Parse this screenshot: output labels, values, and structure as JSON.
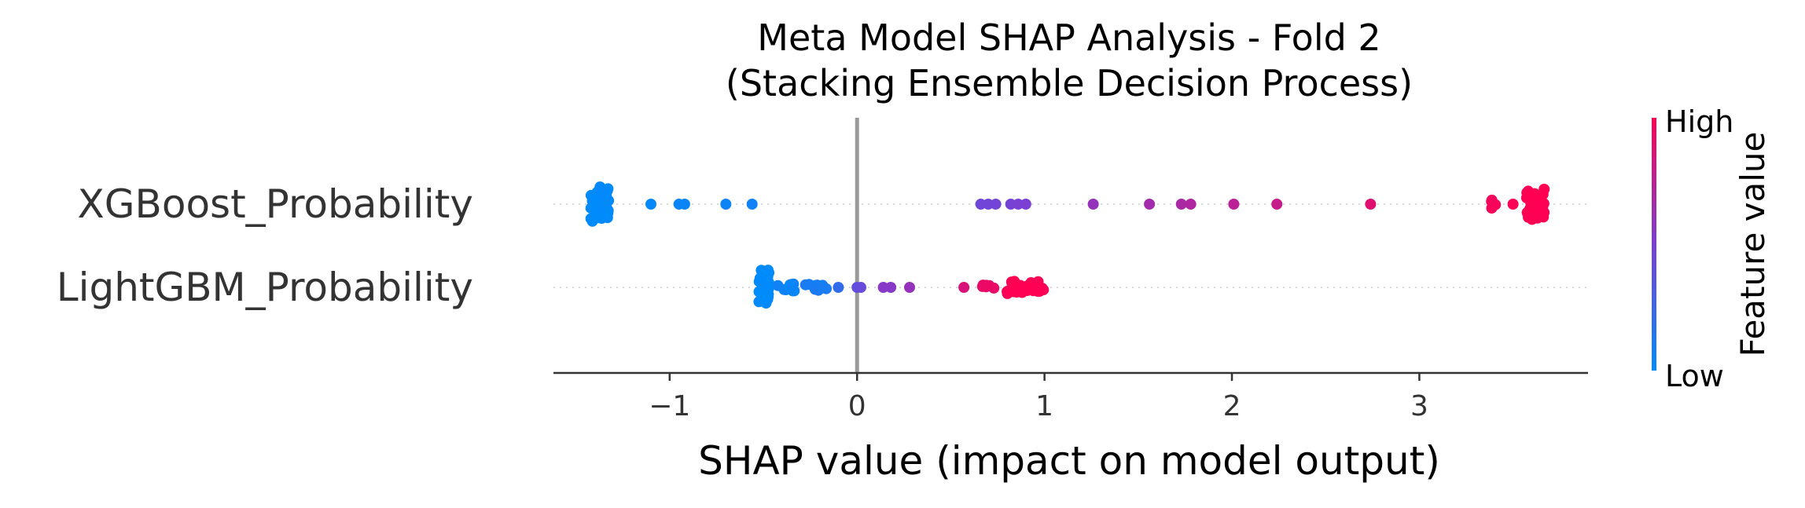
{
  "chart_data": {
    "type": "scatter",
    "title": "Meta Model SHAP Analysis - Fold 2",
    "subtitle": "(Stacking Ensemble Decision Process)",
    "xlabel": "SHAP value (impact on model output)",
    "ylabel": "",
    "xlim": [
      -1.62,
      3.9
    ],
    "xticks": [
      -1,
      0,
      1,
      2,
      3
    ],
    "xtick_labels": [
      "−1",
      "0",
      "1",
      "2",
      "3"
    ],
    "zero_line": 0,
    "grid": false,
    "colorbar": {
      "title": "Feature value",
      "high_label": "High",
      "low_label": "Low",
      "low_color": "#008bfb",
      "mid_color": "#7b3fd4",
      "high_color": "#ff0052"
    },
    "features": [
      {
        "name": "XGBoost_Probability",
        "clusters": [
          {
            "center": -1.37,
            "spread": 0.05,
            "count": 40,
            "value": 0.0,
            "jitter": 0.55
          },
          {
            "center": 3.62,
            "spread": 0.05,
            "count": 36,
            "value": 1.0,
            "jitter": 0.5
          },
          {
            "center": 3.4,
            "spread": 0.02,
            "count": 6,
            "value": 0.97,
            "jitter": 0.15
          }
        ],
        "points": [
          {
            "x": -1.1,
            "v": 0.02
          },
          {
            "x": -0.95,
            "v": 0.03
          },
          {
            "x": -0.92,
            "v": 0.04
          },
          {
            "x": -0.7,
            "v": 0.05
          },
          {
            "x": -0.56,
            "v": 0.06
          },
          {
            "x": 0.66,
            "v": 0.45
          },
          {
            "x": 0.7,
            "v": 0.46
          },
          {
            "x": 0.74,
            "v": 0.47
          },
          {
            "x": 0.82,
            "v": 0.48
          },
          {
            "x": 0.86,
            "v": 0.5
          },
          {
            "x": 0.9,
            "v": 0.5
          },
          {
            "x": 1.26,
            "v": 0.6
          },
          {
            "x": 1.56,
            "v": 0.65
          },
          {
            "x": 1.73,
            "v": 0.68
          },
          {
            "x": 1.78,
            "v": 0.7
          },
          {
            "x": 2.01,
            "v": 0.74
          },
          {
            "x": 2.24,
            "v": 0.78
          },
          {
            "x": 2.74,
            "v": 0.88
          },
          {
            "x": 3.5,
            "v": 0.98
          }
        ]
      },
      {
        "name": "LightGBM_Probability",
        "clusters": [
          {
            "center": -0.5,
            "spread": 0.03,
            "count": 36,
            "value": 0.0,
            "jitter": 0.55
          },
          {
            "center": -0.38,
            "spread": 0.05,
            "count": 10,
            "value": 0.05,
            "jitter": 0.12
          },
          {
            "center": -0.22,
            "spread": 0.06,
            "count": 10,
            "value": 0.1,
            "jitter": 0.1
          },
          {
            "center": 0.9,
            "spread": 0.1,
            "count": 30,
            "value": 1.0,
            "jitter": 0.2
          },
          {
            "center": 0.7,
            "spread": 0.04,
            "count": 6,
            "value": 0.92,
            "jitter": 0.08
          }
        ],
        "points": [
          {
            "x": -0.1,
            "v": 0.2
          },
          {
            "x": 0.0,
            "v": 0.4
          },
          {
            "x": 0.02,
            "v": 0.42
          },
          {
            "x": 0.14,
            "v": 0.55
          },
          {
            "x": 0.18,
            "v": 0.55
          },
          {
            "x": 0.28,
            "v": 0.6
          },
          {
            "x": 0.57,
            "v": 0.85
          }
        ]
      }
    ]
  }
}
